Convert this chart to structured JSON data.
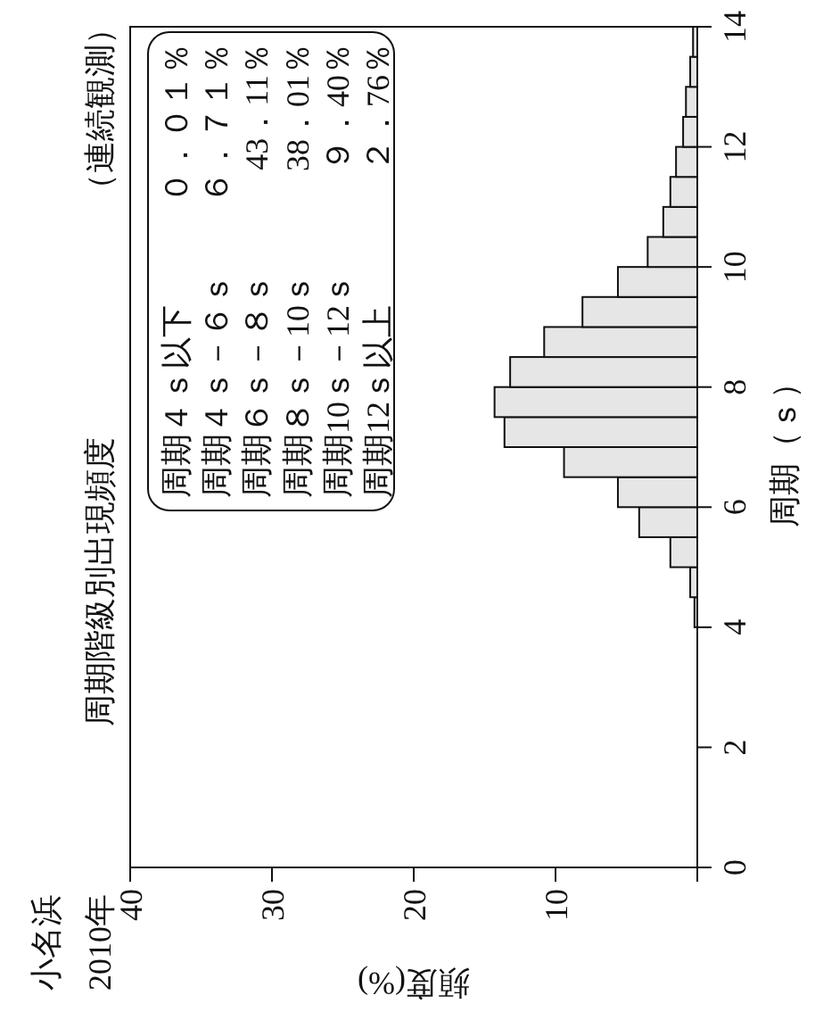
{
  "chart_data": {
    "type": "histogram",
    "orientation": "horizontal",
    "title": "小名浜",
    "subtitle": "2010年",
    "xlabel": "頻度(%)",
    "ylabel": "周期（ｓ）",
    "annotations": [
      "周期階級別出現頻度",
      "（連続観測）",
      "周期４ｓ以下",
      "周期４ｓ－６ｓ",
      "周期６ｓ－８ｓ",
      "周期８ｓ－10ｓ",
      "周期10ｓ－12ｓ",
      "周期12ｓ以上",
      "０．０１％",
      "６．７１％",
      "43．11％",
      "38．01％",
      "９．40％",
      "２．76％"
    ],
    "bins": [
      4,
      4.5,
      5,
      5.5,
      6,
      6.5,
      7,
      7.5,
      8,
      8.5,
      9,
      9.5,
      10,
      10.5,
      11,
      11.5,
      12,
      12.5,
      13,
      13.5,
      14
    ],
    "values": [
      0.2,
      0.5,
      1.9,
      4.1,
      5.6,
      9.4,
      13.6,
      14.3,
      13.2,
      10.8,
      8.1,
      5.6,
      3.5,
      2.4,
      1.9,
      1.5,
      1.0,
      0.8,
      0.5,
      0.3
    ],
    "color": "#e6e6e6",
    "ylim": [
      0,
      14
    ],
    "yticks": [
      0,
      2,
      4,
      6,
      8,
      10,
      12,
      14
    ],
    "xlim": [
      40,
      0
    ],
    "xticks": [
      40,
      30,
      20,
      10,
      {
        "value": 0,
        "label": null
      }
    ],
    "grid": false,
    "legend": false
  }
}
